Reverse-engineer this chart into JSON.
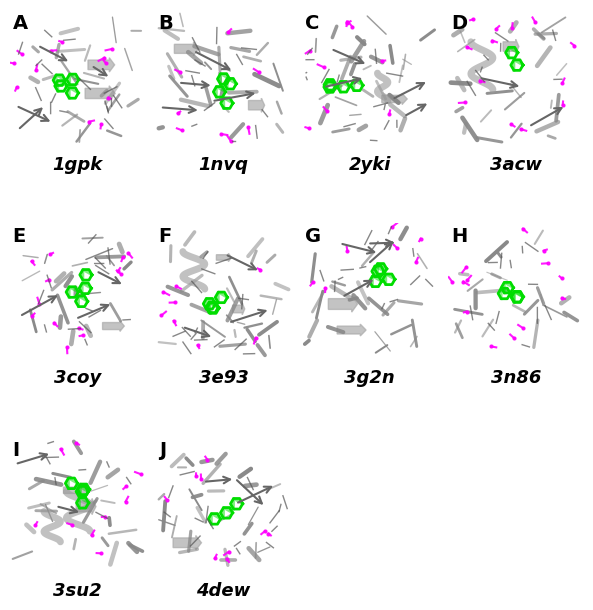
{
  "panels": [
    {
      "label": "A",
      "name": "1gpk",
      "row": 0,
      "col": 0
    },
    {
      "label": "B",
      "name": "1nvq",
      "row": 0,
      "col": 1
    },
    {
      "label": "C",
      "name": "2yki",
      "row": 0,
      "col": 2
    },
    {
      "label": "D",
      "name": "3acw",
      "row": 0,
      "col": 3
    },
    {
      "label": "E",
      "name": "3coy",
      "row": 1,
      "col": 0
    },
    {
      "label": "F",
      "name": "3e93",
      "row": 1,
      "col": 1
    },
    {
      "label": "G",
      "name": "3g2n",
      "row": 1,
      "col": 2
    },
    {
      "label": "H",
      "name": "3n86",
      "row": 1,
      "col": 3
    },
    {
      "label": "I",
      "name": "3su2",
      "row": 2,
      "col": 0
    },
    {
      "label": "J",
      "name": "4dew",
      "row": 2,
      "col": 1
    }
  ],
  "ncols": 4,
  "nrows": 3,
  "fig_width": 5.85,
  "fig_height": 6.0,
  "bg_color": "#ffffff",
  "label_fontsize": 14,
  "name_fontsize": 13,
  "label_color": "#000000",
  "name_color": "#000000",
  "label_weight": "bold",
  "name_weight": "bold",
  "protein_color": "#aaaaaa",
  "ligand_color": "#00cc00",
  "hbond_color": "#ff00ff",
  "panel_bg": "#ffffff",
  "descriptions": {
    "1gpk": {
      "has_helix": false,
      "has_sheet": true,
      "ligand_size": "large"
    },
    "1nvq": {
      "has_helix": false,
      "has_sheet": true,
      "ligand_size": "large"
    },
    "2yki": {
      "has_helix": true,
      "has_sheet": true,
      "ligand_size": "large"
    },
    "3acw": {
      "has_helix": true,
      "has_sheet": true,
      "ligand_size": "medium"
    },
    "3coy": {
      "has_helix": false,
      "has_sheet": true,
      "ligand_size": "large"
    },
    "3e93": {
      "has_helix": true,
      "has_sheet": true,
      "ligand_size": "large"
    },
    "3g2n": {
      "has_helix": false,
      "has_sheet": true,
      "ligand_size": "medium"
    },
    "3n86": {
      "has_helix": false,
      "has_sheet": false,
      "ligand_size": "medium"
    },
    "3su2": {
      "has_helix": true,
      "has_sheet": true,
      "ligand_size": "large"
    },
    "4dew": {
      "has_helix": false,
      "has_sheet": true,
      "ligand_size": "large"
    }
  }
}
